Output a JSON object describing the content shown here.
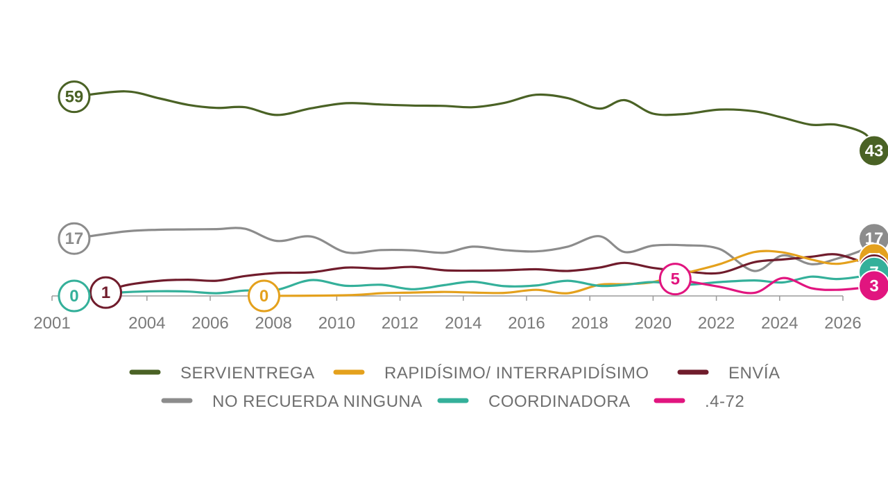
{
  "chart_data": {
    "type": "line",
    "x_ticks": [
      2001,
      2004,
      2006,
      2008,
      2010,
      2012,
      2014,
      2016,
      2018,
      2020,
      2022,
      2024,
      2026
    ],
    "xlim": [
      2001,
      2026
    ],
    "ylim": [
      0,
      62
    ],
    "grid": false,
    "legend": "bottom",
    "series": [
      {
        "name": "SERVIENTREGA",
        "color": "#4a6225",
        "label_style": "outline",
        "points": [
          [
            2001.7,
            59
          ],
          [
            2003.3,
            60.6
          ],
          [
            2004.4,
            58.5
          ],
          [
            2005.3,
            56.6
          ],
          [
            2006.2,
            55.7
          ],
          [
            2007.1,
            55.9
          ],
          [
            2008.1,
            53.6
          ],
          [
            2009.2,
            55.6
          ],
          [
            2010.3,
            57.1
          ],
          [
            2011.4,
            56.7
          ],
          [
            2012.4,
            56.4
          ],
          [
            2013.4,
            56.3
          ],
          [
            2014.3,
            55.9
          ],
          [
            2015.3,
            57.2
          ],
          [
            2016.3,
            59.6
          ],
          [
            2017.3,
            58.6
          ],
          [
            2018.3,
            55.5
          ],
          [
            2019.1,
            58.0
          ],
          [
            2020.0,
            54.0
          ],
          [
            2021.0,
            53.9
          ],
          [
            2022.1,
            55.2
          ],
          [
            2023.2,
            54.7
          ],
          [
            2024.1,
            52.8
          ],
          [
            2025.0,
            50.7
          ],
          [
            2025.8,
            50.7
          ],
          [
            2026.7,
            48.0
          ],
          [
            2027.5,
            43
          ]
        ],
        "start_label": "59",
        "end_label": "43"
      },
      {
        "name": "NO RECUERDA NINGUNA",
        "color": "#8c8c8c",
        "label_style": "outline",
        "points": [
          [
            2001.7,
            17
          ],
          [
            2003.3,
            19.1
          ],
          [
            2004.4,
            19.6
          ],
          [
            2005.3,
            19.7
          ],
          [
            2006.2,
            19.8
          ],
          [
            2007.1,
            19.9
          ],
          [
            2008.1,
            16.3
          ],
          [
            2009.2,
            17.6
          ],
          [
            2010.3,
            12.9
          ],
          [
            2011.4,
            13.6
          ],
          [
            2012.4,
            13.5
          ],
          [
            2013.4,
            12.8
          ],
          [
            2014.3,
            14.6
          ],
          [
            2015.3,
            13.6
          ],
          [
            2016.3,
            13.2
          ],
          [
            2017.3,
            14.6
          ],
          [
            2018.3,
            17.7
          ],
          [
            2019.1,
            13.0
          ],
          [
            2020.0,
            14.9
          ],
          [
            2021.0,
            15.0
          ],
          [
            2022.1,
            13.9
          ],
          [
            2023.2,
            7.4
          ],
          [
            2024.1,
            12.0
          ],
          [
            2025.0,
            9.4
          ],
          [
            2025.8,
            11.0
          ],
          [
            2026.7,
            14.0
          ],
          [
            2027.5,
            17
          ]
        ],
        "start_label": "17",
        "end_label": "17"
      },
      {
        "name": "ENVÍA",
        "color": "#701c2c",
        "label_style": "outline",
        "points": [
          [
            2002.7,
            1
          ],
          [
            2003.3,
            3.1
          ],
          [
            2004.4,
            4.5
          ],
          [
            2005.3,
            4.8
          ],
          [
            2006.2,
            4.5
          ],
          [
            2007.1,
            5.9
          ],
          [
            2008.1,
            6.8
          ],
          [
            2009.2,
            7.0
          ],
          [
            2010.3,
            8.4
          ],
          [
            2011.4,
            8.1
          ],
          [
            2012.4,
            8.6
          ],
          [
            2013.4,
            7.6
          ],
          [
            2014.3,
            7.5
          ],
          [
            2015.3,
            7.6
          ],
          [
            2016.3,
            7.9
          ],
          [
            2017.3,
            7.4
          ],
          [
            2018.3,
            8.4
          ],
          [
            2019.1,
            9.8
          ],
          [
            2020.0,
            8.3
          ],
          [
            2021.0,
            7.3
          ],
          [
            2022.1,
            6.8
          ],
          [
            2023.2,
            10.0
          ],
          [
            2024.1,
            10.8
          ],
          [
            2025.0,
            11.6
          ],
          [
            2025.8,
            12.3
          ],
          [
            2026.7,
            9.7
          ],
          [
            2027.5,
            8
          ]
        ],
        "start_label": "1",
        "end_label": "8"
      },
      {
        "name": "RAPIDÍSIMO/ INTERRAPIDÍSIMO",
        "color": "#e4a11d",
        "label_style": "outline",
        "points": [
          [
            2007.7,
            0
          ],
          [
            2010.3,
            0.2
          ],
          [
            2011.4,
            0.8
          ],
          [
            2012.4,
            1.0
          ],
          [
            2013.4,
            1.2
          ],
          [
            2014.3,
            1.0
          ],
          [
            2015.3,
            0.9
          ],
          [
            2016.3,
            1.8
          ],
          [
            2017.3,
            0.8
          ],
          [
            2018.3,
            3.3
          ],
          [
            2019.1,
            3.5
          ],
          [
            2020.0,
            4.1
          ],
          [
            2021.0,
            6.7
          ],
          [
            2022.1,
            9.4
          ],
          [
            2023.2,
            13.0
          ],
          [
            2024.1,
            12.9
          ],
          [
            2025.0,
            10.8
          ],
          [
            2025.8,
            9.5
          ],
          [
            2026.7,
            11.0
          ],
          [
            2027.5,
            11
          ]
        ],
        "start_label": "0",
        "end_label": "11"
      },
      {
        "name": "COORDINADORA",
        "color": "#34b09a",
        "label_style": "outline",
        "points": [
          [
            2001.7,
            0
          ],
          [
            2003.3,
            1.1
          ],
          [
            2004.4,
            1.4
          ],
          [
            2005.3,
            1.3
          ],
          [
            2006.2,
            0.8
          ],
          [
            2007.1,
            1.6
          ],
          [
            2008.1,
            1.8
          ],
          [
            2009.2,
            4.7
          ],
          [
            2010.3,
            3.0
          ],
          [
            2011.4,
            3.3
          ],
          [
            2012.4,
            2.0
          ],
          [
            2013.4,
            3.2
          ],
          [
            2014.3,
            4.2
          ],
          [
            2015.3,
            2.9
          ],
          [
            2016.3,
            3.1
          ],
          [
            2017.3,
            4.5
          ],
          [
            2018.3,
            3.0
          ],
          [
            2019.1,
            3.3
          ],
          [
            2020.0,
            4.1
          ],
          [
            2021.0,
            3.3
          ],
          [
            2022.1,
            4.1
          ],
          [
            2023.2,
            4.6
          ],
          [
            2024.1,
            4.0
          ],
          [
            2025.0,
            5.7
          ],
          [
            2025.8,
            5.0
          ],
          [
            2026.7,
            6.0
          ],
          [
            2027.5,
            7
          ]
        ],
        "start_label": "0",
        "end_label": "7"
      },
      {
        "name": ".4-72",
        "color": "#e1157f",
        "label_style": "outline",
        "points": [
          [
            2020.7,
            5
          ],
          [
            2022.1,
            2.7
          ],
          [
            2023.2,
            0.9
          ],
          [
            2024.1,
            5.3
          ],
          [
            2025.0,
            2.3
          ],
          [
            2025.8,
            1.8
          ],
          [
            2026.7,
            2.5
          ],
          [
            2027.5,
            3
          ]
        ],
        "start_label": "5",
        "end_label": "3"
      }
    ]
  }
}
